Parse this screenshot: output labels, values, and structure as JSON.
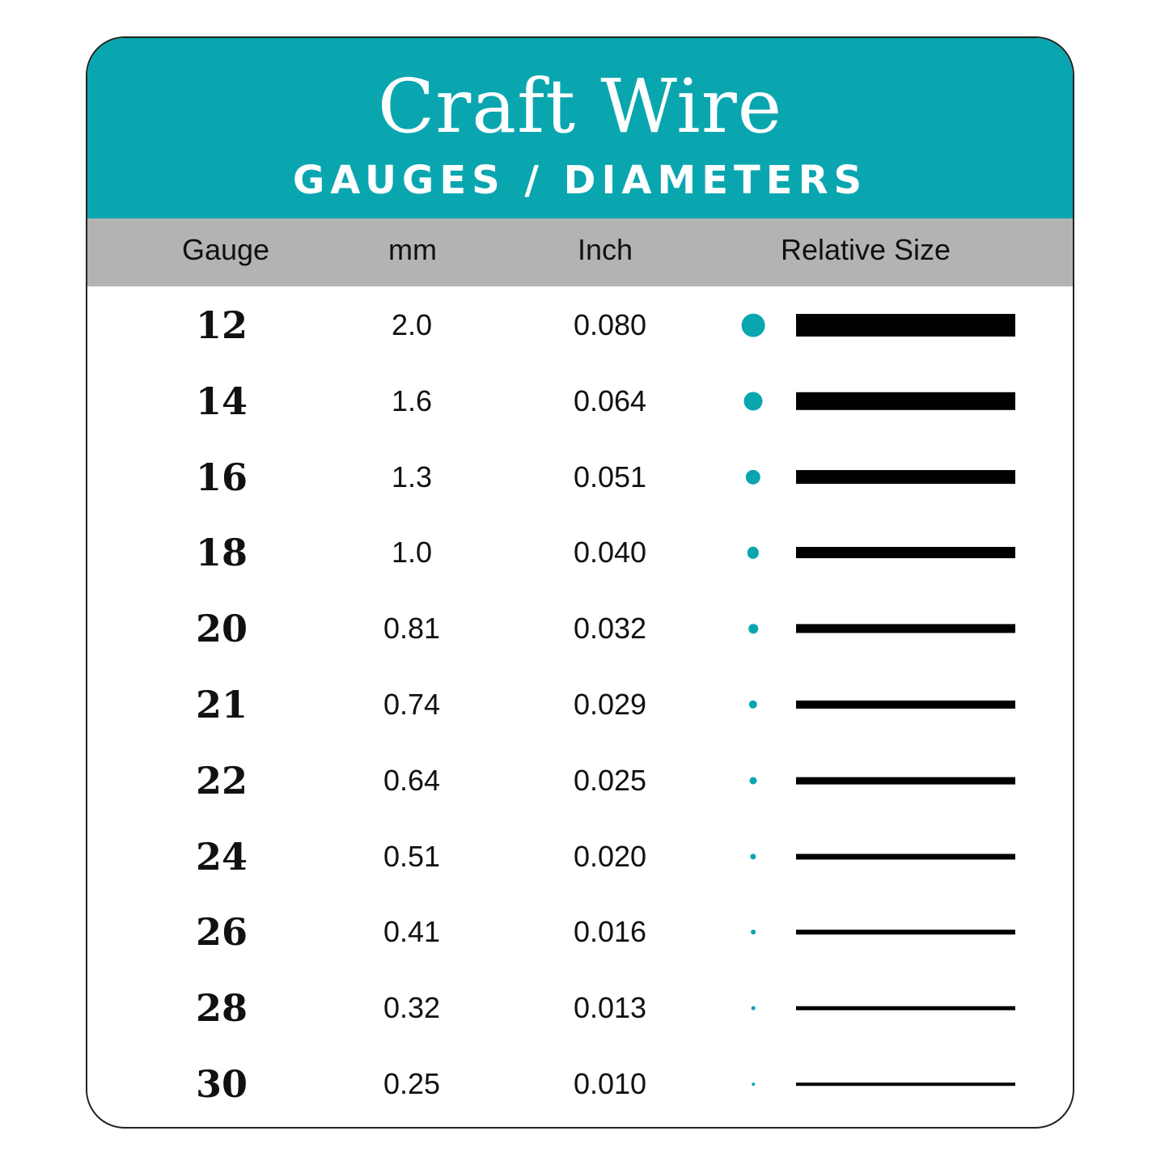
{
  "header": {
    "title": "Craft Wire",
    "subtitle": "GAUGES / DIAMETERS"
  },
  "columns": {
    "gauge": "Gauge",
    "mm": "mm",
    "inch": "Inch",
    "relative": "Relative Size"
  },
  "colors": {
    "accent": "#0aa6b0",
    "header_gray": "#b3b3b3",
    "bar": "#000000"
  },
  "rows": [
    {
      "gauge": "12",
      "mm": "2.0",
      "inch": "0.080"
    },
    {
      "gauge": "14",
      "mm": "1.6",
      "inch": "0.064"
    },
    {
      "gauge": "16",
      "mm": "1.3",
      "inch": "0.051"
    },
    {
      "gauge": "18",
      "mm": "1.0",
      "inch": "0.040"
    },
    {
      "gauge": "20",
      "mm": "0.81",
      "inch": "0.032"
    },
    {
      "gauge": "21",
      "mm": "0.74",
      "inch": "0.029"
    },
    {
      "gauge": "22",
      "mm": "0.64",
      "inch": "0.025"
    },
    {
      "gauge": "24",
      "mm": "0.51",
      "inch": "0.020"
    },
    {
      "gauge": "26",
      "mm": "0.41",
      "inch": "0.016"
    },
    {
      "gauge": "28",
      "mm": "0.32",
      "inch": "0.013"
    },
    {
      "gauge": "30",
      "mm": "0.25",
      "inch": "0.010"
    }
  ]
}
